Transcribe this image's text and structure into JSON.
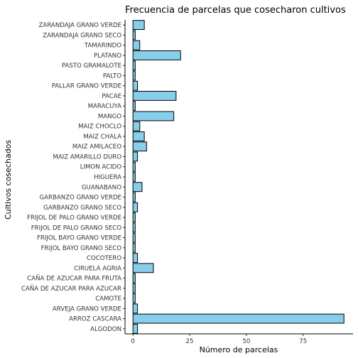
{
  "chart_data": {
    "type": "bar",
    "orientation": "horizontal",
    "title": "Frecuencia de parcelas que cosecharon cultivos",
    "xlabel": "Número de parcelas",
    "ylabel": "Cultivos cosechados",
    "categories": [
      "ALGODON",
      "ARROZ CASCARA",
      "ARVEJA GRANO VERDE",
      "CAMOTE",
      "CAÑA DE AZUCAR PARA AZUCAR",
      "CAÑA DE AZUCAR PARA FRUTA",
      "CIRUELA AGRIA",
      "COCOTERO",
      "FRIJOL BAYO GRANO SECO",
      "FRIJOL BAYO GRANO VERDE",
      "FRIJOL DE PALO GRANO SECO",
      "FRIJOL DE PALO GRANO VERDE",
      "GARBANZO GRANO SECO",
      "GARBANZO GRANO VERDE",
      "GUANABANO",
      "HIGUERA",
      "LIMON ACIDO",
      "MAIZ AMARILLO DURO",
      "MAIZ AMILACEO",
      "MAIZ CHALA",
      "MAIZ CHOCLO",
      "MANGO",
      "MARACUYA",
      "PACAE",
      "PALLAR GRANO VERDE",
      "PALTO",
      "PASTO GRAMALOTE",
      "PLATANO",
      "TAMARINDO",
      "ZARANDAJA GRANO SECO",
      "ZARANDAJA GRANO VERDE"
    ],
    "values": [
      2,
      93,
      2,
      1,
      1,
      1,
      9,
      2,
      1,
      1,
      1,
      1,
      2,
      1,
      4,
      1,
      1,
      2,
      6,
      5,
      3,
      18,
      1,
      19,
      2,
      1,
      1,
      21,
      3,
      1,
      5
    ],
    "xlim": [
      -3.5,
      97
    ],
    "xticks": [
      0,
      25,
      50,
      75
    ],
    "grid": false,
    "bar_fill": "#87ceeb",
    "bar_stroke": "#000000"
  }
}
